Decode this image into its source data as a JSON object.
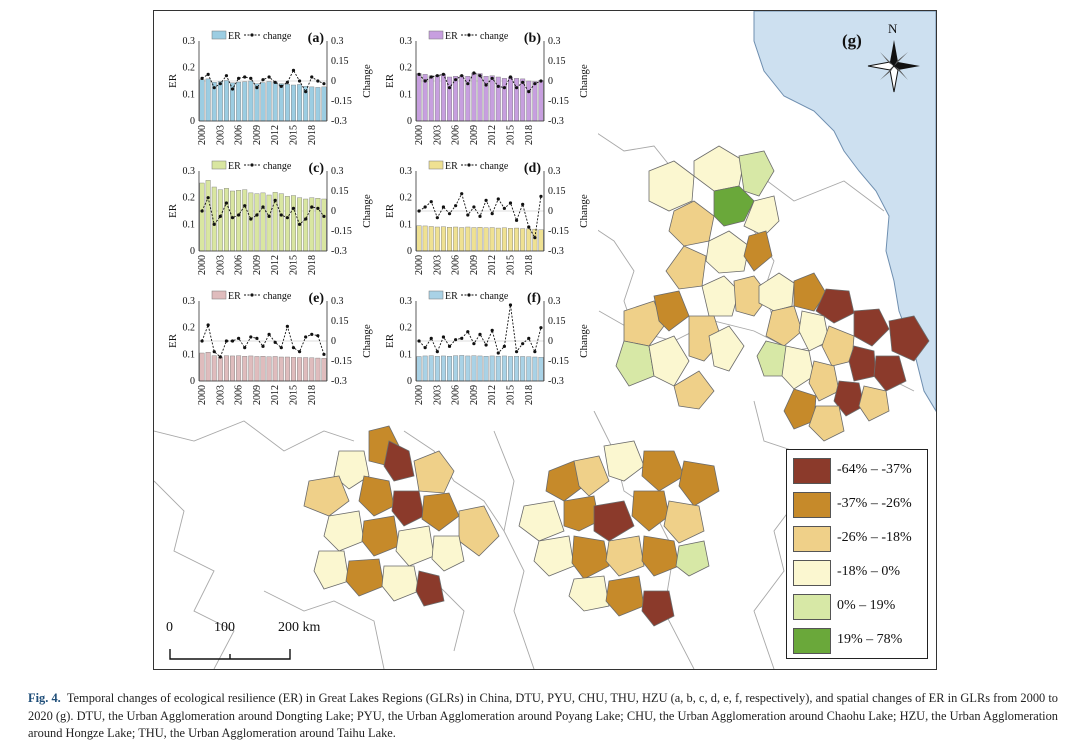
{
  "panel_g_label": "(g)",
  "north_label": "N",
  "scale_bar": {
    "ticks": [
      "0",
      "100",
      "200 km"
    ]
  },
  "legend": {
    "items": [
      {
        "label": "-64% – -37%",
        "color": "#8b3a2b"
      },
      {
        "label": "-37% – -26%",
        "color": "#c68a2a"
      },
      {
        "label": "-26% – -18%",
        "color": "#efd089"
      },
      {
        "label": "-18% – 0%",
        "color": "#fbf7d0"
      },
      {
        "label": "0% – 19%",
        "color": "#d7e8a6"
      },
      {
        "label": "19% – 78%",
        "color": "#6aa83a"
      }
    ]
  },
  "colors": {
    "sea": "#cde0f0",
    "land": "#ffffff",
    "border": "#9a9a9a"
  },
  "chart_data": [
    {
      "type": "bar",
      "panel": "(a)",
      "legend": [
        "ER",
        "change"
      ],
      "ylabel": "ER",
      "y2label": "Change",
      "x": [
        "2000",
        "2001",
        "2002",
        "2003",
        "2004",
        "2005",
        "2006",
        "2007",
        "2008",
        "2009",
        "2010",
        "2011",
        "2012",
        "2013",
        "2014",
        "2015",
        "2016",
        "2017",
        "2018",
        "2019",
        "2020"
      ],
      "xticks": [
        "2000",
        "2003",
        "2006",
        "2009",
        "2012",
        "2015",
        "2018"
      ],
      "ylim": [
        0,
        0.3
      ],
      "yticks": [
        "0",
        "0.1",
        "0.2",
        "0.3"
      ],
      "y2lim": [
        -0.3,
        0.3
      ],
      "y2ticks": [
        "-0.3",
        "-0.15",
        "0",
        "0.15",
        "0.3"
      ],
      "bar_color": "#9ccde2",
      "er": [
        0.155,
        0.158,
        0.145,
        0.148,
        0.152,
        0.143,
        0.146,
        0.147,
        0.15,
        0.14,
        0.144,
        0.148,
        0.146,
        0.14,
        0.138,
        0.135,
        0.137,
        0.13,
        0.128,
        0.126,
        0.128
      ],
      "change": [
        0.02,
        0.05,
        -0.05,
        -0.02,
        0.04,
        -0.06,
        0.02,
        0.03,
        0.02,
        -0.05,
        0.01,
        0.03,
        -0.01,
        -0.04,
        -0.01,
        0.08,
        0.0,
        -0.08,
        0.03,
        0.0,
        -0.02
      ]
    },
    {
      "type": "bar",
      "panel": "(b)",
      "legend": [
        "ER",
        "change"
      ],
      "ylabel": "ER",
      "y2label": "Change",
      "x": [
        "2000",
        "2001",
        "2002",
        "2003",
        "2004",
        "2005",
        "2006",
        "2007",
        "2008",
        "2009",
        "2010",
        "2011",
        "2012",
        "2013",
        "2014",
        "2015",
        "2016",
        "2017",
        "2018",
        "2019",
        "2020"
      ],
      "xticks": [
        "2000",
        "2003",
        "2006",
        "2009",
        "2012",
        "2015",
        "2018"
      ],
      "ylim": [
        0,
        0.3
      ],
      "yticks": [
        "0",
        "0.1",
        "0.2",
        "0.3"
      ],
      "y2lim": [
        -0.3,
        0.3
      ],
      "y2ticks": [
        "-0.3",
        "-0.15",
        "0",
        "0.15",
        "0.3"
      ],
      "bar_color": "#c79fdf",
      "er": [
        0.178,
        0.175,
        0.17,
        0.172,
        0.176,
        0.165,
        0.168,
        0.17,
        0.168,
        0.18,
        0.178,
        0.168,
        0.17,
        0.165,
        0.16,
        0.165,
        0.16,
        0.158,
        0.15,
        0.148,
        0.152
      ],
      "change": [
        0.05,
        0.0,
        0.03,
        0.04,
        0.05,
        -0.05,
        0.01,
        0.04,
        -0.02,
        0.06,
        0.04,
        -0.03,
        0.02,
        -0.04,
        -0.05,
        0.03,
        -0.05,
        -0.01,
        -0.08,
        -0.02,
        0.0
      ]
    },
    {
      "type": "bar",
      "panel": "(c)",
      "legend": [
        "ER",
        "change"
      ],
      "ylabel": "ER",
      "y2label": "Change",
      "x": [
        "2000",
        "2001",
        "2002",
        "2003",
        "2004",
        "2005",
        "2006",
        "2007",
        "2008",
        "2009",
        "2010",
        "2011",
        "2012",
        "2013",
        "2014",
        "2015",
        "2016",
        "2017",
        "2018",
        "2019",
        "2020"
      ],
      "xticks": [
        "2000",
        "2003",
        "2006",
        "2009",
        "2012",
        "2015",
        "2018"
      ],
      "ylim": [
        0,
        0.3
      ],
      "yticks": [
        "0",
        "0.1",
        "0.2",
        "0.3"
      ],
      "y2lim": [
        -0.3,
        0.3
      ],
      "y2ticks": [
        "-0.3",
        "-0.15",
        "0",
        "0.15",
        "0.3"
      ],
      "bar_color": "#d9e6a1",
      "er": [
        0.255,
        0.265,
        0.24,
        0.23,
        0.235,
        0.225,
        0.228,
        0.23,
        0.218,
        0.215,
        0.218,
        0.21,
        0.22,
        0.215,
        0.205,
        0.208,
        0.2,
        0.195,
        0.2,
        0.198,
        0.195
      ],
      "change": [
        0.0,
        0.1,
        -0.1,
        -0.04,
        0.06,
        -0.05,
        -0.03,
        0.04,
        -0.06,
        -0.03,
        0.03,
        -0.04,
        0.08,
        -0.03,
        -0.05,
        0.02,
        -0.1,
        -0.06,
        0.03,
        0.02,
        -0.04
      ]
    },
    {
      "type": "bar",
      "panel": "(d)",
      "legend": [
        "ER",
        "change"
      ],
      "ylabel": "ER",
      "y2label": "Change",
      "x": [
        "2000",
        "2001",
        "2002",
        "2003",
        "2004",
        "2005",
        "2006",
        "2007",
        "2008",
        "2009",
        "2010",
        "2011",
        "2012",
        "2013",
        "2014",
        "2015",
        "2016",
        "2017",
        "2018",
        "2019",
        "2020"
      ],
      "xticks": [
        "2000",
        "2003",
        "2006",
        "2009",
        "2012",
        "2015",
        "2018"
      ],
      "ylim": [
        0,
        0.3
      ],
      "yticks": [
        "0",
        "0.1",
        "0.2",
        "0.3"
      ],
      "y2lim": [
        -0.3,
        0.3
      ],
      "y2ticks": [
        "-0.3",
        "-0.15",
        "0",
        "0.15",
        "0.3"
      ],
      "bar_color": "#efe192",
      "er": [
        0.095,
        0.094,
        0.092,
        0.09,
        0.091,
        0.089,
        0.09,
        0.088,
        0.09,
        0.088,
        0.089,
        0.087,
        0.088,
        0.086,
        0.087,
        0.085,
        0.086,
        0.084,
        0.083,
        0.082,
        0.08
      ],
      "change": [
        0.0,
        0.03,
        0.07,
        -0.05,
        0.03,
        -0.02,
        0.04,
        0.13,
        -0.03,
        0.03,
        -0.04,
        0.08,
        -0.02,
        0.09,
        0.02,
        0.06,
        -0.07,
        0.05,
        -0.12,
        -0.2,
        0.11
      ]
    },
    {
      "type": "bar",
      "panel": "(e)",
      "legend": [
        "ER",
        "change"
      ],
      "ylabel": "ER",
      "y2label": "Change",
      "x": [
        "2000",
        "2001",
        "2002",
        "2003",
        "2004",
        "2005",
        "2006",
        "2007",
        "2008",
        "2009",
        "2010",
        "2011",
        "2012",
        "2013",
        "2014",
        "2015",
        "2016",
        "2017",
        "2018",
        "2019",
        "2020"
      ],
      "xticks": [
        "2000",
        "2003",
        "2006",
        "2009",
        "2012",
        "2015",
        "2018"
      ],
      "ylim": [
        0,
        0.3
      ],
      "yticks": [
        "0",
        "0.1",
        "0.2",
        "0.3"
      ],
      "y2lim": [
        -0.3,
        0.3
      ],
      "y2ticks": [
        "-0.3",
        "-0.15",
        "0",
        "0.15",
        "0.3"
      ],
      "bar_color": "#dfbcbd",
      "er": [
        0.105,
        0.108,
        0.095,
        0.09,
        0.095,
        0.094,
        0.095,
        0.093,
        0.094,
        0.092,
        0.093,
        0.091,
        0.092,
        0.09,
        0.09,
        0.089,
        0.088,
        0.088,
        0.087,
        0.086,
        0.085
      ],
      "change": [
        0.0,
        0.12,
        -0.08,
        -0.12,
        0.0,
        0.0,
        0.02,
        -0.05,
        0.03,
        0.02,
        -0.04,
        0.05,
        -0.01,
        -0.05,
        0.11,
        -0.05,
        -0.08,
        0.03,
        0.05,
        0.04,
        -0.1
      ]
    },
    {
      "type": "bar",
      "panel": "(f)",
      "legend": [
        "ER",
        "change"
      ],
      "ylabel": "ER",
      "y2label": "Change",
      "x": [
        "2000",
        "2001",
        "2002",
        "2003",
        "2004",
        "2005",
        "2006",
        "2007",
        "2008",
        "2009",
        "2010",
        "2011",
        "2012",
        "2013",
        "2014",
        "2015",
        "2016",
        "2017",
        "2018",
        "2019",
        "2020"
      ],
      "xticks": [
        "2000",
        "2003",
        "2006",
        "2009",
        "2012",
        "2015",
        "2018"
      ],
      "ylim": [
        0,
        0.3
      ],
      "yticks": [
        "0",
        "0.1",
        "0.2",
        "0.3"
      ],
      "y2lim": [
        -0.3,
        0.3
      ],
      "y2ticks": [
        "-0.3",
        "-0.15",
        "0",
        "0.15",
        "0.3"
      ],
      "bar_color": "#a9d2e6",
      "er": [
        0.092,
        0.094,
        0.095,
        0.093,
        0.094,
        0.093,
        0.095,
        0.096,
        0.094,
        0.095,
        0.094,
        0.093,
        0.094,
        0.093,
        0.094,
        0.092,
        0.093,
        0.092,
        0.091,
        0.09,
        0.089
      ],
      "change": [
        0.0,
        -0.05,
        0.02,
        -0.08,
        0.03,
        -0.04,
        0.01,
        0.02,
        0.07,
        -0.02,
        0.05,
        -0.03,
        0.08,
        -0.09,
        -0.04,
        0.27,
        -0.08,
        -0.02,
        0.02,
        -0.08,
        0.1
      ]
    }
  ],
  "caption": {
    "label": "Fig. 4.",
    "text": "Temporal changes of ecological resilience (ER) in Great Lakes Regions (GLRs) in China, DTU, PYU, CHU, THU, HZU (a, b, c, d, e, f, respectively), and spatial changes of ER in GLRs from 2000 to 2020 (g). DTU, the Urban Agglomeration around Dongting Lake; PYU, the Urban Agglomeration around Poyang Lake; CHU, the Urban Agglomeration around Chaohu Lake; HZU, the Urban Agglomeration around Hongze Lake; THU, the Urban Agglomeration around Taihu Lake."
  }
}
